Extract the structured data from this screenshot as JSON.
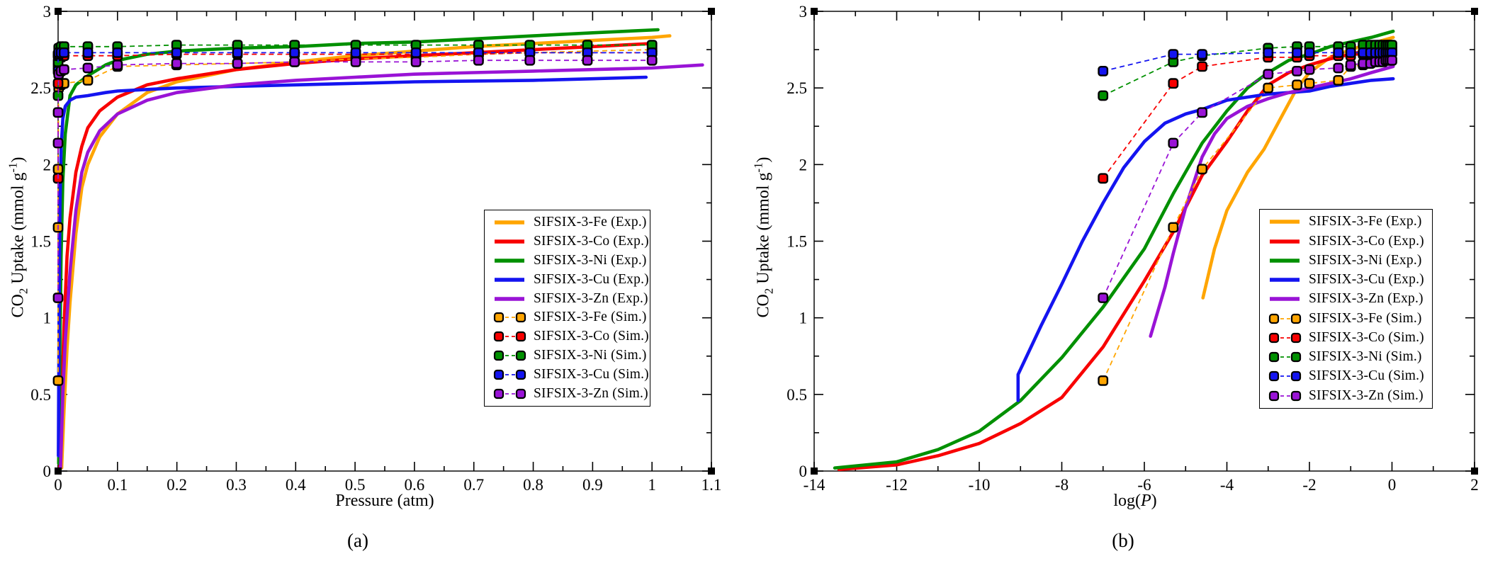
{
  "figure": {
    "background": "#ffffff",
    "frame_color": "#1a1a1a",
    "description": "CO2 adsorption isotherms for SIFSIX-3-M (M = Fe, Co, Ni, Cu, Zn): experimental solid lines and simulated dashed lines with square-round markers, shown versus pressure (a) and versus log(P) (b)."
  },
  "chart_data": {
    "type": "line",
    "sim_x_log": [
      -7,
      -5.3,
      -4.6,
      -3,
      -2.3,
      -2,
      -1.3,
      -1,
      -0.7,
      -0.52,
      -0.4,
      -0.3,
      -0.22,
      -0.15,
      -0.1,
      -0.05,
      0
    ],
    "series": [
      {
        "name": "SIFSIX-3-Fe",
        "color": "#FFA500",
        "exp_atm": [
          [
            0.006,
            0.02
          ],
          [
            0.01,
            0.4
          ],
          [
            0.015,
            0.8
          ],
          [
            0.02,
            1.1
          ],
          [
            0.03,
            1.55
          ],
          [
            0.04,
            1.85
          ],
          [
            0.05,
            2.0
          ],
          [
            0.07,
            2.18
          ],
          [
            0.1,
            2.33
          ],
          [
            0.15,
            2.47
          ],
          [
            0.2,
            2.54
          ],
          [
            0.3,
            2.62
          ],
          [
            0.4,
            2.67
          ],
          [
            0.5,
            2.71
          ],
          [
            0.6,
            2.74
          ],
          [
            0.7,
            2.77
          ],
          [
            0.8,
            2.79
          ],
          [
            0.9,
            2.81
          ],
          [
            1.0,
            2.83
          ],
          [
            1.03,
            2.84
          ]
        ],
        "exp_log": [
          [
            -4.58,
            1.13
          ],
          [
            -4.3,
            1.45
          ],
          [
            -4.0,
            1.7
          ],
          [
            -3.5,
            1.95
          ],
          [
            -3.1,
            2.1
          ],
          [
            -2.7,
            2.3
          ],
          [
            -2.3,
            2.5
          ],
          [
            -2.0,
            2.6
          ],
          [
            -1.5,
            2.7
          ],
          [
            -1.0,
            2.75
          ],
          [
            -0.5,
            2.79
          ],
          [
            0.03,
            2.83
          ]
        ],
        "sim_values": [
          0.59,
          1.59,
          1.97,
          2.5,
          2.52,
          2.53,
          2.55,
          2.64,
          2.65,
          2.66,
          2.67,
          2.69,
          2.7,
          2.72,
          2.73,
          2.74,
          2.75
        ]
      },
      {
        "name": "SIFSIX-3-Co",
        "color": "#F80000",
        "exp_atm": [
          [
            0.003,
            0.02
          ],
          [
            0.006,
            0.5
          ],
          [
            0.01,
            0.95
          ],
          [
            0.015,
            1.4
          ],
          [
            0.02,
            1.65
          ],
          [
            0.03,
            1.95
          ],
          [
            0.04,
            2.12
          ],
          [
            0.05,
            2.24
          ],
          [
            0.07,
            2.35
          ],
          [
            0.1,
            2.44
          ],
          [
            0.15,
            2.52
          ],
          [
            0.2,
            2.56
          ],
          [
            0.3,
            2.62
          ],
          [
            0.4,
            2.66
          ],
          [
            0.5,
            2.69
          ],
          [
            0.6,
            2.71
          ],
          [
            0.7,
            2.73
          ],
          [
            0.8,
            2.75
          ],
          [
            0.9,
            2.77
          ],
          [
            1.0,
            2.79
          ]
        ],
        "exp_log": [
          [
            -13.4,
            0.01
          ],
          [
            -12,
            0.04
          ],
          [
            -11,
            0.1
          ],
          [
            -10,
            0.18
          ],
          [
            -9,
            0.31
          ],
          [
            -8,
            0.48
          ],
          [
            -7,
            0.81
          ],
          [
            -6,
            1.24
          ],
          [
            -5.3,
            1.56
          ],
          [
            -4.6,
            1.93
          ],
          [
            -4,
            2.15
          ],
          [
            -3.5,
            2.35
          ],
          [
            -3,
            2.52
          ],
          [
            -2.5,
            2.6
          ],
          [
            -2,
            2.65
          ],
          [
            -1.5,
            2.69
          ],
          [
            -1,
            2.72
          ],
          [
            -0.5,
            2.75
          ],
          [
            0.03,
            2.78
          ]
        ],
        "sim_values": [
          1.91,
          2.53,
          2.64,
          2.7,
          2.7,
          2.71,
          2.71,
          2.71,
          2.72,
          2.72,
          2.72,
          2.72,
          2.72,
          2.72,
          2.73,
          2.73,
          2.73
        ]
      },
      {
        "name": "SIFSIX-3-Ni",
        "color": "#009000",
        "exp_atm": [
          [
            0.001,
            0.05
          ],
          [
            0.003,
            0.8
          ],
          [
            0.005,
            1.4
          ],
          [
            0.008,
            1.9
          ],
          [
            0.012,
            2.2
          ],
          [
            0.02,
            2.45
          ],
          [
            0.03,
            2.52
          ],
          [
            0.05,
            2.58
          ],
          [
            0.08,
            2.65
          ],
          [
            0.1,
            2.68
          ],
          [
            0.15,
            2.72
          ],
          [
            0.2,
            2.74
          ],
          [
            0.3,
            2.76
          ],
          [
            0.4,
            2.77
          ],
          [
            0.5,
            2.79
          ],
          [
            0.6,
            2.8
          ],
          [
            0.7,
            2.82
          ],
          [
            0.8,
            2.84
          ],
          [
            0.9,
            2.86
          ],
          [
            1.01,
            2.88
          ]
        ],
        "exp_log": [
          [
            -13.5,
            0.02
          ],
          [
            -12,
            0.06
          ],
          [
            -11,
            0.14
          ],
          [
            -10,
            0.26
          ],
          [
            -9,
            0.46
          ],
          [
            -8,
            0.74
          ],
          [
            -7,
            1.07
          ],
          [
            -6,
            1.45
          ],
          [
            -5.3,
            1.81
          ],
          [
            -4.6,
            2.14
          ],
          [
            -4,
            2.35
          ],
          [
            -3.5,
            2.5
          ],
          [
            -3,
            2.6
          ],
          [
            -2.5,
            2.68
          ],
          [
            -2,
            2.72
          ],
          [
            -1.5,
            2.77
          ],
          [
            -1,
            2.8
          ],
          [
            -0.5,
            2.83
          ],
          [
            0.03,
            2.87
          ]
        ],
        "sim_values": [
          2.45,
          2.67,
          2.71,
          2.76,
          2.77,
          2.77,
          2.77,
          2.77,
          2.78,
          2.78,
          2.78,
          2.78,
          2.78,
          2.78,
          2.78,
          2.78,
          2.78
        ]
      },
      {
        "name": "SIFSIX-3-Cu",
        "color": "#1414F0",
        "exp_atm": [
          [
            0.0005,
            0.1
          ],
          [
            0.001,
            0.5
          ],
          [
            0.002,
            1.2
          ],
          [
            0.003,
            1.7
          ],
          [
            0.005,
            2.1
          ],
          [
            0.008,
            2.3
          ],
          [
            0.012,
            2.38
          ],
          [
            0.02,
            2.42
          ],
          [
            0.03,
            2.44
          ],
          [
            0.05,
            2.45
          ],
          [
            0.08,
            2.47
          ],
          [
            0.1,
            2.48
          ],
          [
            0.15,
            2.49
          ],
          [
            0.2,
            2.5
          ],
          [
            0.3,
            2.51
          ],
          [
            0.4,
            2.52
          ],
          [
            0.5,
            2.53
          ],
          [
            0.6,
            2.54
          ],
          [
            0.7,
            2.545
          ],
          [
            0.8,
            2.55
          ],
          [
            0.9,
            2.56
          ],
          [
            0.99,
            2.57
          ]
        ],
        "exp_log": [
          [
            -9.06,
            0.46
          ],
          [
            -9.06,
            0.63
          ],
          [
            -8.5,
            0.95
          ],
          [
            -8,
            1.22
          ],
          [
            -7.5,
            1.5
          ],
          [
            -7,
            1.75
          ],
          [
            -6.5,
            1.98
          ],
          [
            -6,
            2.15
          ],
          [
            -5.5,
            2.27
          ],
          [
            -5,
            2.33
          ],
          [
            -4.6,
            2.36
          ],
          [
            -4,
            2.42
          ],
          [
            -3.5,
            2.44
          ],
          [
            -3,
            2.46
          ],
          [
            -2.5,
            2.47
          ],
          [
            -2,
            2.48
          ],
          [
            -1.5,
            2.51
          ],
          [
            -1,
            2.53
          ],
          [
            -0.5,
            2.55
          ],
          [
            0.03,
            2.56
          ]
        ],
        "sim_values": [
          2.61,
          2.72,
          2.72,
          2.73,
          2.73,
          2.73,
          2.73,
          2.73,
          2.73,
          2.73,
          2.73,
          2.73,
          2.73,
          2.73,
          2.73,
          2.73,
          2.73
        ]
      },
      {
        "name": "SIFSIX-3-Zn",
        "color": "#9913D6",
        "exp_atm": [
          [
            0.004,
            0.02
          ],
          [
            0.008,
            0.5
          ],
          [
            0.012,
            0.85
          ],
          [
            0.02,
            1.3
          ],
          [
            0.03,
            1.7
          ],
          [
            0.04,
            1.95
          ],
          [
            0.05,
            2.08
          ],
          [
            0.07,
            2.22
          ],
          [
            0.1,
            2.33
          ],
          [
            0.15,
            2.42
          ],
          [
            0.2,
            2.47
          ],
          [
            0.3,
            2.52
          ],
          [
            0.4,
            2.55
          ],
          [
            0.5,
            2.57
          ],
          [
            0.6,
            2.59
          ],
          [
            0.7,
            2.6
          ],
          [
            0.8,
            2.61
          ],
          [
            0.9,
            2.62
          ],
          [
            1.0,
            2.63
          ],
          [
            1.085,
            2.65
          ]
        ],
        "exp_log": [
          [
            -5.85,
            0.88
          ],
          [
            -5.5,
            1.2
          ],
          [
            -5.3,
            1.42
          ],
          [
            -5.0,
            1.72
          ],
          [
            -4.6,
            2.05
          ],
          [
            -4.3,
            2.2
          ],
          [
            -4.0,
            2.3
          ],
          [
            -3.5,
            2.38
          ],
          [
            -3.0,
            2.43
          ],
          [
            -2.5,
            2.47
          ],
          [
            -2.0,
            2.5
          ],
          [
            -1.5,
            2.53
          ],
          [
            -1.0,
            2.56
          ],
          [
            -0.5,
            2.6
          ],
          [
            0.03,
            2.64
          ]
        ],
        "sim_values": [
          1.13,
          2.14,
          2.34,
          2.59,
          2.61,
          2.62,
          2.63,
          2.65,
          2.66,
          2.66,
          2.67,
          2.67,
          2.67,
          2.68,
          2.68,
          2.68,
          2.68
        ]
      }
    ],
    "panels": [
      {
        "id": "a",
        "caption": "(a)",
        "exp_key": "exp_atm",
        "sim_transform": "pow10",
        "xlabel_text": "Pressure (atm)",
        "xlabel_parts": [
          [
            "t",
            "Pressure (atm)"
          ]
        ],
        "ylabel_text": "CO2 Uptake (mmol g-1)",
        "ylabel_parts": [
          [
            "t",
            "CO"
          ],
          [
            "sub",
            "2"
          ],
          [
            "t",
            " Uptake (mmol g"
          ],
          [
            "sup",
            "-1"
          ],
          [
            "t",
            ")"
          ]
        ],
        "x": {
          "min": 0,
          "max": 1.1,
          "majors": [
            0,
            0.1,
            0.2,
            0.3,
            0.4,
            0.5,
            0.6,
            0.7,
            0.8,
            0.9,
            1,
            1.1
          ],
          "major_labels": [
            "0",
            "0.1",
            "0.2",
            "0.3",
            "0.4",
            "0.5",
            "0.6",
            "0.7",
            "0.8",
            "0.9",
            "1",
            "1.1"
          ],
          "minors": [
            0.05,
            0.15,
            0.25,
            0.35,
            0.45,
            0.55,
            0.65,
            0.75,
            0.85,
            0.95,
            1.05
          ]
        },
        "y": {
          "min": 0,
          "max": 3,
          "majors": [
            0,
            0.5,
            1,
            1.5,
            2,
            2.5,
            3
          ],
          "major_labels": [
            "0",
            "0.5",
            "1",
            "1.5",
            "2",
            "2.5",
            "3"
          ],
          "minors": [
            0.25,
            0.75,
            1.25,
            1.75,
            2.25,
            2.75
          ]
        }
      },
      {
        "id": "b",
        "caption": "(b)",
        "exp_key": "exp_log",
        "sim_transform": "identity",
        "xlabel_text": "log(P)",
        "xlabel_parts": [
          [
            "t",
            "log("
          ],
          [
            "i",
            "P"
          ],
          [
            "t",
            ")"
          ]
        ],
        "ylabel_text": "CO2 Uptake (mmol g-1)",
        "ylabel_parts": [
          [
            "t",
            "CO"
          ],
          [
            "sub",
            "2"
          ],
          [
            "t",
            " Uptake (mmol g"
          ],
          [
            "sup",
            "-1"
          ],
          [
            "t",
            ")"
          ]
        ],
        "x": {
          "min": -14,
          "max": 2,
          "majors": [
            -14,
            -12,
            -10,
            -8,
            -6,
            -4,
            -2,
            0,
            2
          ],
          "major_labels": [
            "-14",
            "-12",
            "-10",
            "-8",
            "-6",
            "-4",
            "-2",
            "0",
            "2"
          ],
          "minors": [
            -13,
            -11,
            -9,
            -7,
            -5,
            -3,
            -1,
            1
          ]
        },
        "y": {
          "min": 0,
          "max": 3,
          "majors": [
            0,
            0.5,
            1,
            1.5,
            2,
            2.5,
            3
          ],
          "major_labels": [
            "0",
            "0.5",
            "1",
            "1.5",
            "2",
            "2.5",
            "3"
          ],
          "minors": [
            0.25,
            0.75,
            1.25,
            1.75,
            2.25,
            2.75
          ]
        }
      }
    ],
    "legend_entries": [
      {
        "label": "SIFSIX-3-Fe (Exp.)",
        "color": "#FFA500",
        "style": "line"
      },
      {
        "label": "SIFSIX-3-Co (Exp.)",
        "color": "#F80000",
        "style": "line"
      },
      {
        "label": "SIFSIX-3-Ni (Exp.)",
        "color": "#009000",
        "style": "line"
      },
      {
        "label": "SIFSIX-3-Cu (Exp.)",
        "color": "#1414F0",
        "style": "line"
      },
      {
        "label": "SIFSIX-3-Zn (Exp.)",
        "color": "#9913D6",
        "style": "line"
      },
      {
        "label": "SIFSIX-3-Fe (Sim.)",
        "color": "#FFA500",
        "style": "marker"
      },
      {
        "label": "SIFSIX-3-Co (Sim.)",
        "color": "#F80000",
        "style": "marker"
      },
      {
        "label": "SIFSIX-3-Ni (Sim.)",
        "color": "#009000",
        "style": "marker"
      },
      {
        "label": "SIFSIX-3-Cu (Sim.)",
        "color": "#1414F0",
        "style": "marker"
      },
      {
        "label": "SIFSIX-3-Zn (Sim.)",
        "color": "#9913D6",
        "style": "marker"
      }
    ]
  }
}
